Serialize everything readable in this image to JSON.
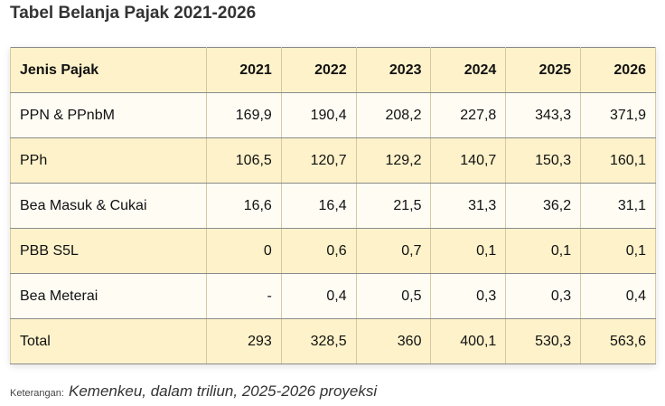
{
  "title": "Tabel Belanja Pajak 2021-2026",
  "table": {
    "headers": [
      "Jenis Pajak",
      "2021",
      "2022",
      "2023",
      "2024",
      "2025",
      "2026"
    ],
    "rows": [
      [
        "PPN & PPnbM",
        "169,9",
        "190,4",
        "208,2",
        "227,8",
        "343,3",
        "371,9"
      ],
      [
        "PPh",
        "106,5",
        "120,7",
        "129,2",
        "140,7",
        "150,3",
        "160,1"
      ],
      [
        "Bea Masuk & Cukai",
        "16,6",
        "16,4",
        "21,5",
        "31,3",
        "36,2",
        "31,1"
      ],
      [
        "PBB S5L",
        "0",
        "0,6",
        "0,7",
        "0,1",
        "0,1",
        "0,1"
      ],
      [
        "Bea Meterai",
        "-",
        "0,4",
        "0,5",
        "0,3",
        "0,3",
        "0,4"
      ],
      [
        "Total",
        "293",
        "328,5",
        "360",
        "400,1",
        "530,3",
        "563,6"
      ]
    ]
  },
  "note": {
    "label": "Keterangan:",
    "text": "Kemenkeu, dalam triliun, 2025-2026 proyeksi"
  }
}
